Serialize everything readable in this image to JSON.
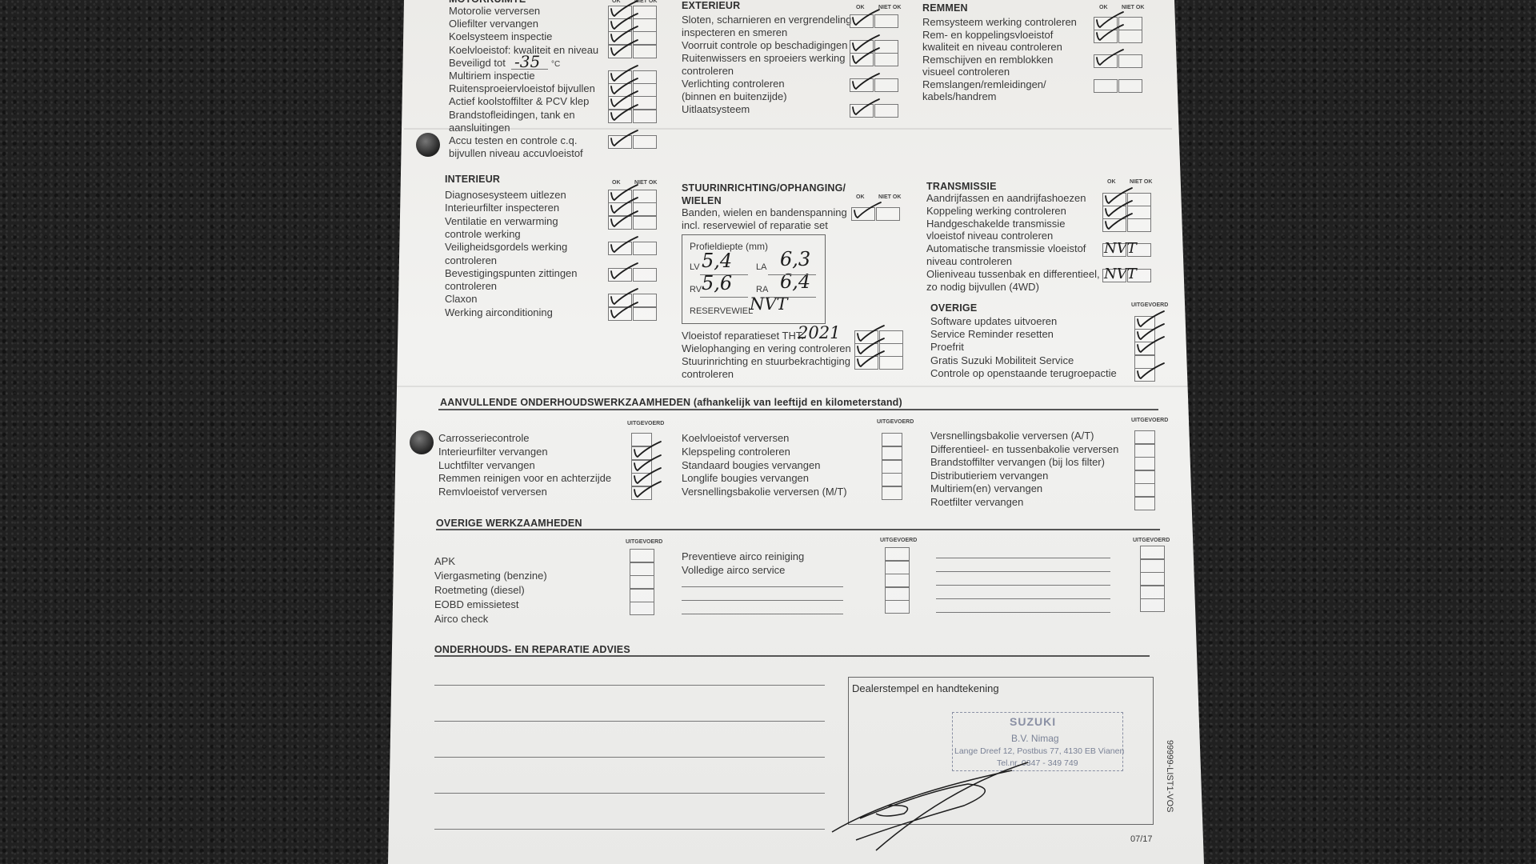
{
  "labels": {
    "ok": "OK",
    "niet_ok": "NIET OK",
    "uitgevoerd": "UITGEVOERD"
  },
  "motorruimte": {
    "heading": "MOTORRUIMTE",
    "items": [
      {
        "label": "Motorolie verversen",
        "status": "ok"
      },
      {
        "label": "Oliefilter vervangen",
        "status": "ok"
      },
      {
        "label": "Koelsysteem inspectie",
        "status": "ok"
      },
      {
        "label": "Koelvloeistof: kwaliteit en niveau",
        "status": "ok"
      },
      {
        "label": "Beveiligd tot",
        "suffix": "°C",
        "handwritten": "-35",
        "status": "nobox"
      },
      {
        "label": "Multiriem inspectie",
        "status": "ok"
      },
      {
        "label": "Ruitensproeiervloeistof bijvullen",
        "status": "ok"
      },
      {
        "label": "Actief koolstoffilter & PCV klep",
        "status": "ok"
      },
      {
        "label": "Brandstofleidingen, tank en",
        "cont": "aansluitingen",
        "status": "ok"
      },
      {
        "label": "Accu testen en controle c.q.",
        "cont": "bijvullen niveau accuvloeistof",
        "status": "ok"
      }
    ]
  },
  "exterieur": {
    "heading": "EXTERIEUR",
    "items": [
      {
        "label": "Sloten, scharnieren en vergrendeling",
        "cont": "inspecteren en smeren",
        "status": "ok"
      },
      {
        "label": "Voorruit controle op beschadigingen",
        "status": "ok"
      },
      {
        "label": "Ruitenwissers en sproeiers werking",
        "cont": "controleren",
        "status": "ok"
      },
      {
        "label": "Verlichting controleren",
        "cont": "(binnen en buitenzijde)",
        "status": "ok"
      },
      {
        "label": "Uitlaatsysteem",
        "status": "ok"
      }
    ]
  },
  "remmen": {
    "heading": "REMMEN",
    "items": [
      {
        "label": "Remsysteem werking controleren",
        "status": "ok"
      },
      {
        "label": "Rem- en koppelingsvloeistof",
        "cont": "kwaliteit en niveau controleren",
        "status": "ok"
      },
      {
        "label": "Remschijven en remblokken",
        "cont": "visueel controleren",
        "status": "ok"
      },
      {
        "label": "Remslangen/remleidingen/",
        "cont": "kabels/handrem",
        "status": "none"
      }
    ]
  },
  "interieur": {
    "heading": "INTERIEUR",
    "items": [
      {
        "label": "Diagnosesysteem uitlezen",
        "status": "ok"
      },
      {
        "label": "Interieurfilter inspecteren",
        "status": "ok"
      },
      {
        "label": "Ventilatie en verwarming",
        "cont": "controle werking",
        "status": "ok"
      },
      {
        "label": "Veiligheidsgordels werking",
        "cont": "controleren",
        "status": "ok"
      },
      {
        "label": "Bevestigingspunten zittingen",
        "cont": "controleren",
        "status": "ok"
      },
      {
        "label": "Claxon",
        "status": "ok"
      },
      {
        "label": "Werking airconditioning",
        "status": "ok"
      }
    ]
  },
  "stuur": {
    "heading": "STUURINRICHTING/OPHANGING/",
    "heading2": "WIELEN",
    "items": [
      {
        "label": "Banden, wielen en bandenspanning",
        "cont": "incl. reservewiel of reparatie set",
        "status": "ok"
      }
    ],
    "profiel": {
      "title": "Profieldiepte (mm)",
      "lv_label": "LV",
      "lv": "5,4",
      "la_label": "LA",
      "la": "6,3",
      "rv_label": "RV",
      "rv": "5,6",
      "ra_label": "RA",
      "ra": "6,4",
      "reservewiel_label": "RESERVEWIEL",
      "reservewiel": "NVT"
    },
    "items2": [
      {
        "label": "Vloeistof reparatieset THT:",
        "handwritten": "2021",
        "status": "ok"
      },
      {
        "label": "Wielophanging en vering controleren",
        "status": "ok"
      },
      {
        "label": "Stuurinrichting en stuurbekrachtiging",
        "cont": "controleren",
        "status": "ok"
      }
    ]
  },
  "transmissie": {
    "heading": "TRANSMISSIE",
    "items": [
      {
        "label": "Aandrijfassen en aandrijfashoezen",
        "status": "ok"
      },
      {
        "label": "Koppeling werking controleren",
        "status": "ok"
      },
      {
        "label": "Handgeschakelde transmissie",
        "cont": "vloeistof niveau controleren",
        "status": "ok"
      },
      {
        "label": "Automatische transmissie vloeistof",
        "cont": "niveau controleren",
        "status": "nvt",
        "handwritten": "NVT"
      },
      {
        "label": "Olieniveau tussenbak en differentieel,",
        "cont": "zo nodig bijvullen (4WD)",
        "status": "nvt",
        "handwritten": "NVT"
      }
    ]
  },
  "overige": {
    "heading": "OVERIGE",
    "items": [
      {
        "label": "Software updates uitvoeren",
        "status": "done"
      },
      {
        "label": "Service Reminder resetten",
        "status": "done"
      },
      {
        "label": "Proefrit",
        "status": "done"
      },
      {
        "label": "Gratis Suzuki Mobiliteit Service",
        "status": "none"
      },
      {
        "label": "Controle op openstaande terugroepactie",
        "status": "done"
      }
    ]
  },
  "aanvullend": {
    "heading": "AANVULLENDE ONDERHOUDSWERKZAAMHEDEN (afhankelijk van leeftijd en kilometerstand)",
    "col1": [
      {
        "label": "Carrosseriecontrole",
        "status": "none"
      },
      {
        "label": "Interieurfilter vervangen",
        "status": "done"
      },
      {
        "label": "Luchtfilter vervangen",
        "status": "done"
      },
      {
        "label": "Remmen reinigen voor en achterzijde",
        "status": "done"
      },
      {
        "label": "Remvloeistof verversen",
        "status": "done"
      }
    ],
    "col2": [
      {
        "label": "Koelvloeistof verversen",
        "status": "none"
      },
      {
        "label": "Klepspeling controleren",
        "status": "none"
      },
      {
        "label": "Standaard bougies vervangen",
        "status": "none"
      },
      {
        "label": "Longlife bougies vervangen",
        "status": "none"
      },
      {
        "label": "Versnellingsbakolie verversen (M/T)",
        "status": "none"
      }
    ],
    "col3": [
      {
        "label": "Versnellingsbakolie verversen (A/T)",
        "status": "none"
      },
      {
        "label": "Differentieel- en tussenbakolie verversen",
        "status": "none"
      },
      {
        "label": "Brandstoffilter vervangen (bij los filter)",
        "status": "none"
      },
      {
        "label": "Distributieriem vervangen",
        "status": "none"
      },
      {
        "label": "Multiriem(en) vervangen",
        "status": "none"
      },
      {
        "label": "Roetfilter vervangen",
        "status": "none"
      }
    ]
  },
  "overige_werk": {
    "heading": "OVERIGE WERKZAAMHEDEN",
    "col1": [
      "APK",
      "Viergasmeting (benzine)",
      "Roetmeting (diesel)",
      "EOBD emissietest",
      "Airco check"
    ],
    "col2": [
      "Preventieve airco reiniging",
      "Volledige airco service"
    ]
  },
  "advies": {
    "heading": "ONDERHOUDS- EN REPARATIE ADVIES"
  },
  "dealer": {
    "label": "Dealerstempel en handtekening",
    "stamp_brand": "SUZUKI",
    "stamp_name": "B.V. Nimag",
    "stamp_address": "Lange Dreef 12, Postbus 77, 4130 EB Vianen",
    "stamp_phone": "Tel.nr. 0347 - 349 749"
  },
  "footer": {
    "code": "99999-LIST1-VOS",
    "date": "07/17"
  },
  "colors": {
    "ink": "#1d1d1d",
    "print": "#3a3a3a",
    "stamp": "#7a8296",
    "background": "#202020"
  }
}
